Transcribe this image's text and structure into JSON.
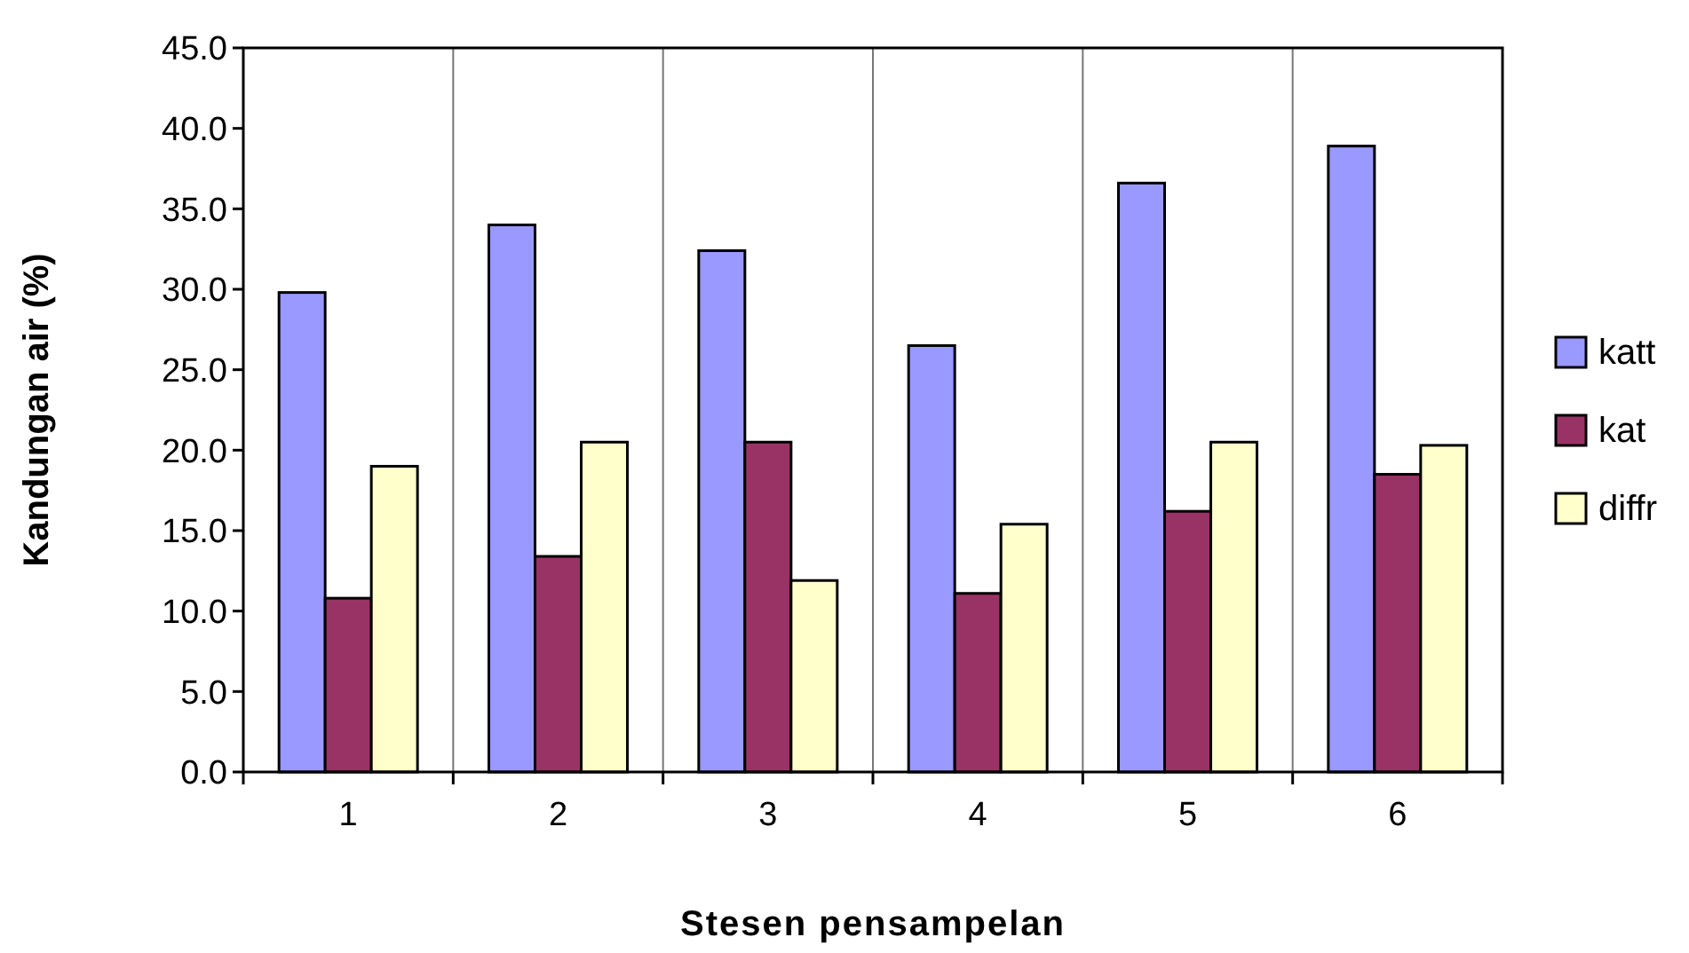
{
  "chart_data": {
    "type": "bar",
    "xlabel": "Stesen pensampelan",
    "ylabel": "Kandungan air (%)",
    "categories": [
      "1",
      "2",
      "3",
      "4",
      "5",
      "6"
    ],
    "series": [
      {
        "name": "katt",
        "color": "#9999ff",
        "values": [
          29.8,
          34.0,
          32.4,
          26.5,
          36.6,
          38.9
        ]
      },
      {
        "name": "kat",
        "color": "#993366",
        "values": [
          10.8,
          13.4,
          20.5,
          11.1,
          16.2,
          18.5
        ]
      },
      {
        "name": "diffr",
        "color": "#ffffcc",
        "values": [
          19.0,
          20.5,
          11.9,
          15.4,
          20.5,
          20.3
        ]
      }
    ],
    "ylim": [
      0,
      45
    ],
    "yticks": [
      {
        "value": 0,
        "label": "0.0"
      },
      {
        "value": 5,
        "label": "5.0"
      },
      {
        "value": 10,
        "label": "10.0"
      },
      {
        "value": 15,
        "label": "15.0"
      },
      {
        "value": 20,
        "label": "20.0"
      },
      {
        "value": 25,
        "label": "25.0"
      },
      {
        "value": 30,
        "label": "30.0"
      },
      {
        "value": 35,
        "label": "35.0"
      },
      {
        "value": 40,
        "label": "40.0"
      },
      {
        "value": 45,
        "label": "45.0"
      }
    ],
    "grid": "x",
    "legend": "right"
  }
}
